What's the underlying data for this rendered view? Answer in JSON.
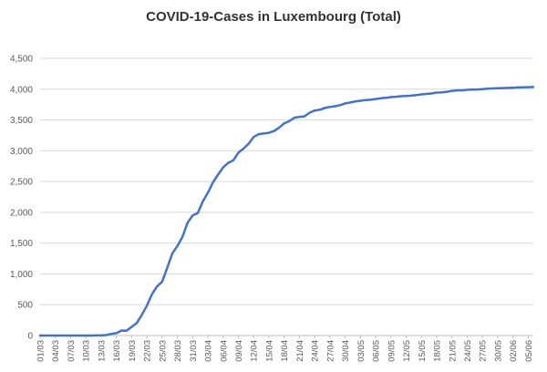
{
  "chart_data": {
    "type": "line",
    "title": "COVID-19-Cases in Luxembourg (Total)",
    "xlabel": "",
    "ylabel": "",
    "ylim": [
      0,
      4500
    ],
    "ytick_step": 500,
    "ytick_labels": [
      "0",
      "500",
      "1,000",
      "1,500",
      "2,000",
      "2,500",
      "3,000",
      "3,500",
      "4,000",
      "4,500"
    ],
    "grid": "horizontal",
    "legend": "none",
    "xtick_labels": [
      "01/03",
      "04/03",
      "07/03",
      "10/03",
      "13/03",
      "16/03",
      "19/03",
      "22/03",
      "25/03",
      "28/03",
      "31/03",
      "03/04",
      "06/04",
      "09/04",
      "12/04",
      "15/04",
      "18/04",
      "21/04",
      "24/04",
      "27/04",
      "30/04",
      "03/05",
      "06/05",
      "09/05",
      "12/05",
      "15/05",
      "18/05",
      "21/05",
      "24/05",
      "27/05",
      "30/05",
      "02/06",
      "05/06"
    ],
    "xtick_every": 3,
    "colors": {
      "line": "#4472C4",
      "grid": "#D9D9D9",
      "axis": "#BFBFBF",
      "text": "#595959"
    },
    "series": [
      {
        "values": [
          0,
          0,
          0,
          0,
          0,
          0,
          0,
          0,
          0,
          0,
          0,
          1,
          3,
          7,
          26,
          38,
          81,
          77,
          140,
          203,
          335,
          484,
          670,
          798,
          875,
          1099,
          1333,
          1453,
          1605,
          1831,
          1950,
          1988,
          2178,
          2319,
          2487,
          2612,
          2729,
          2804,
          2843,
          2970,
          3034,
          3115,
          3223,
          3270,
          3281,
          3292,
          3320,
          3373,
          3444,
          3480,
          3537,
          3550,
          3558,
          3618,
          3654,
          3665,
          3695,
          3711,
          3723,
          3741,
          3769,
          3784,
          3802,
          3812,
          3824,
          3828,
          3840,
          3851,
          3859,
          3871,
          3877,
          3886,
          3888,
          3894,
          3904,
          3915,
          3923,
          3930,
          3945,
          3947,
          3958,
          3971,
          3980,
          3981,
          3990,
          3993,
          3995,
          4001,
          4008,
          4012,
          4016,
          4018,
          4020,
          4024,
          4028,
          4031,
          4032,
          4035
        ]
      }
    ]
  }
}
